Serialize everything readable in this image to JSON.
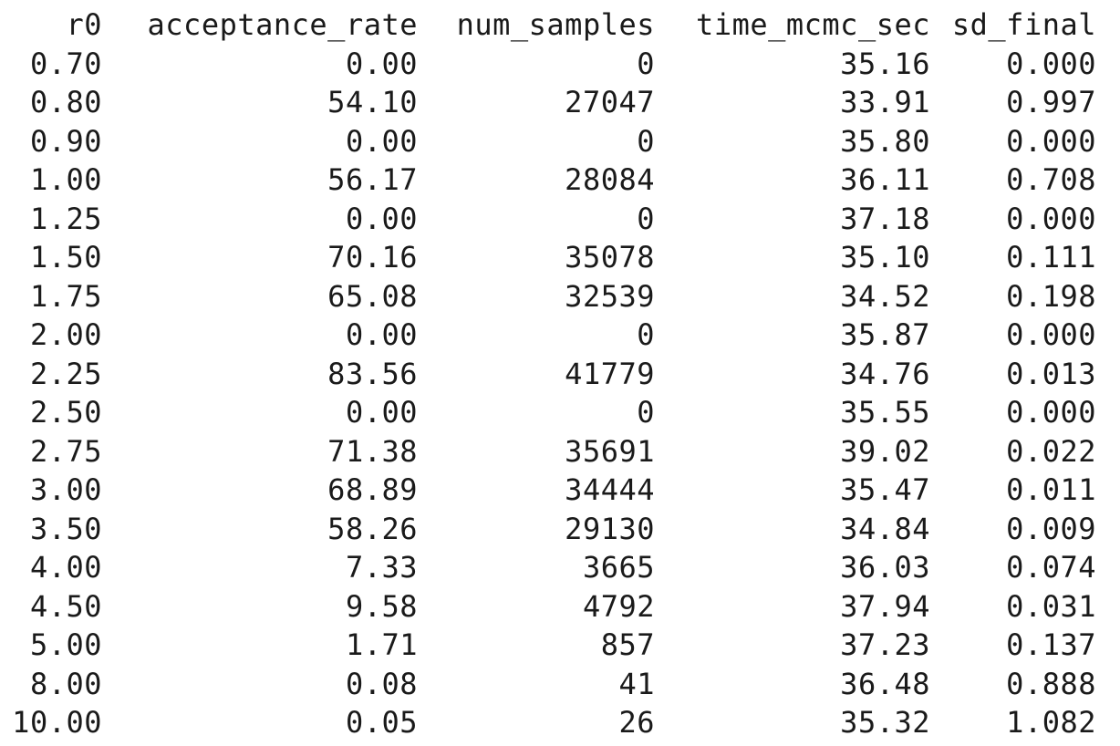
{
  "table": {
    "columns": [
      "r0",
      "acceptance_rate",
      "num_samples",
      "time_mcmc_sec",
      "sd_final"
    ],
    "rows": [
      {
        "r0": "0.70",
        "acceptance_rate": "0.00",
        "num_samples": "0",
        "time_mcmc_sec": "35.16",
        "sd_final": "0.000"
      },
      {
        "r0": "0.80",
        "acceptance_rate": "54.10",
        "num_samples": "27047",
        "time_mcmc_sec": "33.91",
        "sd_final": "0.997"
      },
      {
        "r0": "0.90",
        "acceptance_rate": "0.00",
        "num_samples": "0",
        "time_mcmc_sec": "35.80",
        "sd_final": "0.000"
      },
      {
        "r0": "1.00",
        "acceptance_rate": "56.17",
        "num_samples": "28084",
        "time_mcmc_sec": "36.11",
        "sd_final": "0.708"
      },
      {
        "r0": "1.25",
        "acceptance_rate": "0.00",
        "num_samples": "0",
        "time_mcmc_sec": "37.18",
        "sd_final": "0.000"
      },
      {
        "r0": "1.50",
        "acceptance_rate": "70.16",
        "num_samples": "35078",
        "time_mcmc_sec": "35.10",
        "sd_final": "0.111"
      },
      {
        "r0": "1.75",
        "acceptance_rate": "65.08",
        "num_samples": "32539",
        "time_mcmc_sec": "34.52",
        "sd_final": "0.198"
      },
      {
        "r0": "2.00",
        "acceptance_rate": "0.00",
        "num_samples": "0",
        "time_mcmc_sec": "35.87",
        "sd_final": "0.000"
      },
      {
        "r0": "2.25",
        "acceptance_rate": "83.56",
        "num_samples": "41779",
        "time_mcmc_sec": "34.76",
        "sd_final": "0.013"
      },
      {
        "r0": "2.50",
        "acceptance_rate": "0.00",
        "num_samples": "0",
        "time_mcmc_sec": "35.55",
        "sd_final": "0.000"
      },
      {
        "r0": "2.75",
        "acceptance_rate": "71.38",
        "num_samples": "35691",
        "time_mcmc_sec": "39.02",
        "sd_final": "0.022"
      },
      {
        "r0": "3.00",
        "acceptance_rate": "68.89",
        "num_samples": "34444",
        "time_mcmc_sec": "35.47",
        "sd_final": "0.011"
      },
      {
        "r0": "3.50",
        "acceptance_rate": "58.26",
        "num_samples": "29130",
        "time_mcmc_sec": "34.84",
        "sd_final": "0.009"
      },
      {
        "r0": "4.00",
        "acceptance_rate": "7.33",
        "num_samples": "3665",
        "time_mcmc_sec": "36.03",
        "sd_final": "0.074"
      },
      {
        "r0": "4.50",
        "acceptance_rate": "9.58",
        "num_samples": "4792",
        "time_mcmc_sec": "37.94",
        "sd_final": "0.031"
      },
      {
        "r0": "5.00",
        "acceptance_rate": "1.71",
        "num_samples": "857",
        "time_mcmc_sec": "37.23",
        "sd_final": "0.137"
      },
      {
        "r0": "8.00",
        "acceptance_rate": "0.08",
        "num_samples": "41",
        "time_mcmc_sec": "36.48",
        "sd_final": "0.888"
      },
      {
        "r0": "10.00",
        "acceptance_rate": "0.05",
        "num_samples": "26",
        "time_mcmc_sec": "35.32",
        "sd_final": "1.082"
      }
    ]
  }
}
